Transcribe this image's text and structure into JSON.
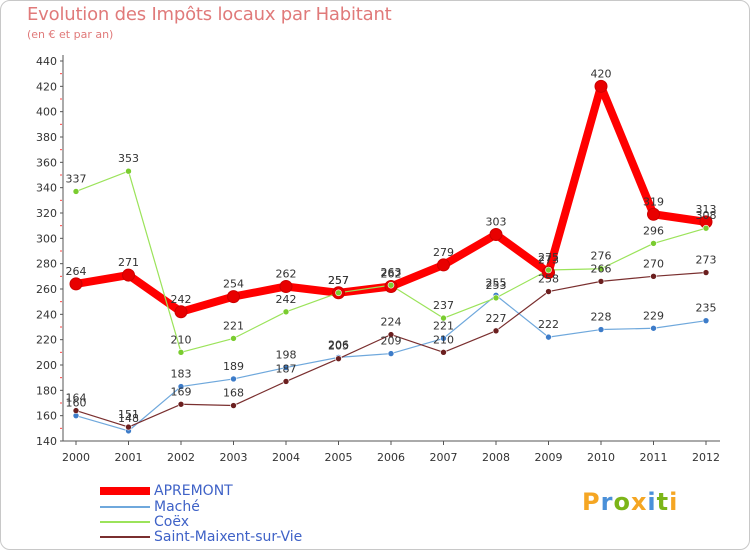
{
  "title": "Evolution des Impôts locaux par Habitant",
  "subtitle": "(en € et par an)",
  "logo": {
    "text": "Proxiti",
    "colors": [
      "#f5a623",
      "#4a90d9",
      "#7cb518",
      "#f5a623",
      "#4a90d9",
      "#7cb518",
      "#f5a623"
    ]
  },
  "chart_data": {
    "type": "line",
    "categories": [
      "2000",
      "2001",
      "2002",
      "2003",
      "2004",
      "2005",
      "2006",
      "2007",
      "2008",
      "2009",
      "2010",
      "2011",
      "2012"
    ],
    "ylim": [
      140,
      440
    ],
    "yticks": [
      140,
      160,
      180,
      200,
      220,
      240,
      260,
      280,
      300,
      320,
      340,
      360,
      380,
      400,
      420,
      440
    ],
    "grid": false,
    "legend_position": "bottom-left",
    "series": [
      {
        "name": "APREMONT",
        "color": "#ff0000",
        "width": 8,
        "marker": "#e80000",
        "values": [
          264,
          271,
          242,
          254,
          262,
          257,
          262,
          279,
          303,
          273,
          420,
          319,
          313
        ]
      },
      {
        "name": "Maché",
        "color": "#6fa8dc",
        "width": 1.2,
        "marker": "#3d7cc9",
        "values": [
          160,
          148,
          183,
          189,
          198,
          206,
          209,
          221,
          255,
          222,
          228,
          229,
          235
        ]
      },
      {
        "name": "Coëx",
        "color": "#9be35a",
        "width": 1.2,
        "marker": "#7acc2f",
        "values": [
          337,
          353,
          210,
          221,
          242,
          257,
          263,
          237,
          253,
          275,
          276,
          296,
          308
        ]
      },
      {
        "name": "Saint-Maixent-sur-Vie",
        "color": "#7a2f2f",
        "width": 1.2,
        "marker": "#6b1f1f",
        "values": [
          164,
          151,
          169,
          168,
          187,
          205,
          224,
          210,
          227,
          258,
          266,
          270,
          273
        ]
      }
    ]
  }
}
